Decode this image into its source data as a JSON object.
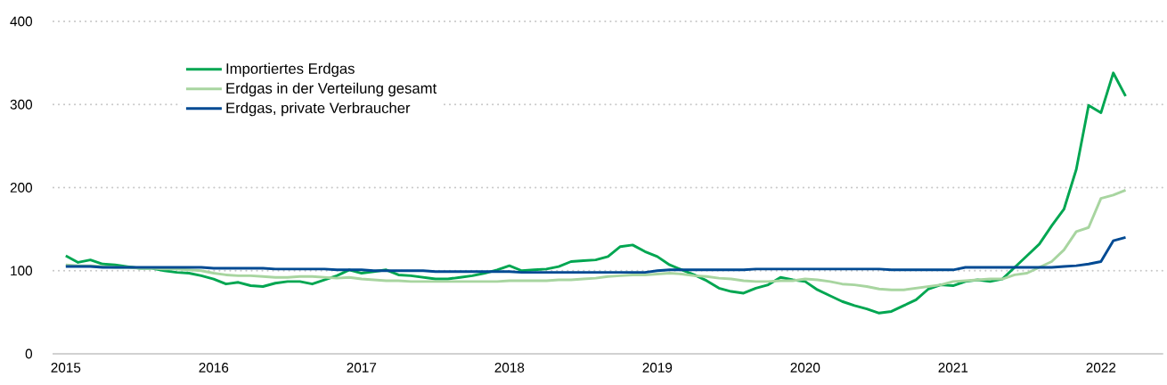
{
  "chart_data": {
    "type": "line",
    "x": [
      "2015-01",
      "2015-02",
      "2015-03",
      "2015-04",
      "2015-05",
      "2015-06",
      "2015-07",
      "2015-08",
      "2015-09",
      "2015-10",
      "2015-11",
      "2015-12",
      "2016-01",
      "2016-02",
      "2016-03",
      "2016-04",
      "2016-05",
      "2016-06",
      "2016-07",
      "2016-08",
      "2016-09",
      "2016-10",
      "2016-11",
      "2016-12",
      "2017-01",
      "2017-02",
      "2017-03",
      "2017-04",
      "2017-05",
      "2017-06",
      "2017-07",
      "2017-08",
      "2017-09",
      "2017-10",
      "2017-11",
      "2017-12",
      "2018-01",
      "2018-02",
      "2018-03",
      "2018-04",
      "2018-05",
      "2018-06",
      "2018-07",
      "2018-08",
      "2018-09",
      "2018-10",
      "2018-11",
      "2018-12",
      "2019-01",
      "2019-02",
      "2019-03",
      "2019-04",
      "2019-05",
      "2019-06",
      "2019-07",
      "2019-08",
      "2019-09",
      "2019-10",
      "2019-11",
      "2019-12",
      "2020-01",
      "2020-02",
      "2020-03",
      "2020-04",
      "2020-05",
      "2020-06",
      "2020-07",
      "2020-08",
      "2020-09",
      "2020-10",
      "2020-11",
      "2020-12",
      "2021-01",
      "2021-02",
      "2021-03",
      "2021-04",
      "2021-05",
      "2021-06",
      "2021-07",
      "2021-08",
      "2021-09",
      "2021-10",
      "2021-11",
      "2021-12",
      "2022-01",
      "2022-02",
      "2022-03"
    ],
    "series": [
      {
        "name": "Importiertes Erdgas",
        "color": "#00a651",
        "values": [
          118,
          110,
          113,
          108,
          107,
          105,
          103,
          103,
          100,
          98,
          97,
          94,
          90,
          84,
          86,
          82,
          81,
          85,
          87,
          87,
          84,
          89,
          94,
          101,
          97,
          99,
          101,
          95,
          94,
          92,
          90,
          90,
          92,
          94,
          97,
          101,
          106,
          100,
          101,
          102,
          105,
          111,
          112,
          113,
          117,
          129,
          131,
          123,
          117,
          107,
          101,
          95,
          88,
          79,
          75,
          73,
          79,
          83,
          92,
          89,
          87,
          77,
          70,
          63,
          58,
          54,
          49,
          51,
          58,
          65,
          78,
          83,
          82,
          87,
          89,
          87,
          90,
          104,
          118,
          132,
          154,
          174,
          222,
          299,
          290,
          338,
          310
        ]
      },
      {
        "name": "Erdgas in der Verteilung gesamt",
        "color": "#a8d5a0",
        "values": [
          107,
          106,
          106,
          105,
          104,
          104,
          103,
          103,
          102,
          102,
          101,
          100,
          97,
          95,
          94,
          94,
          93,
          92,
          92,
          93,
          93,
          92,
          91,
          92,
          90,
          89,
          88,
          88,
          87,
          87,
          87,
          87,
          87,
          87,
          87,
          87,
          88,
          88,
          88,
          88,
          89,
          89,
          90,
          91,
          93,
          94,
          95,
          95,
          96,
          97,
          96,
          94,
          93,
          91,
          90,
          88,
          87,
          87,
          88,
          88,
          90,
          89,
          87,
          84,
          83,
          81,
          78,
          77,
          77,
          79,
          81,
          83,
          87,
          88,
          89,
          90,
          90,
          95,
          97,
          104,
          111,
          125,
          147,
          152,
          187,
          191,
          197
        ]
      },
      {
        "name": "Erdgas, private Verbraucher",
        "color": "#004a93",
        "values": [
          105,
          105,
          105,
          104,
          104,
          104,
          104,
          104,
          104,
          104,
          104,
          104,
          103,
          103,
          103,
          103,
          103,
          102,
          102,
          102,
          102,
          102,
          101,
          101,
          101,
          100,
          100,
          100,
          100,
          100,
          99,
          99,
          99,
          99,
          99,
          99,
          99,
          98,
          98,
          98,
          98,
          98,
          98,
          98,
          98,
          98,
          98,
          98,
          100,
          101,
          101,
          101,
          101,
          101,
          101,
          101,
          102,
          102,
          102,
          102,
          102,
          102,
          102,
          102,
          102,
          102,
          102,
          101,
          101,
          101,
          101,
          101,
          101,
          104,
          104,
          104,
          104,
          104,
          104,
          104,
          104,
          105,
          106,
          108,
          111,
          136,
          140
        ]
      }
    ],
    "xlim": [
      "2014-12",
      "2022-06"
    ],
    "xticks": [
      "2015",
      "2016",
      "2017",
      "2018",
      "2019",
      "2020",
      "2021",
      "2022"
    ],
    "ylim": [
      0,
      400
    ],
    "yticks": [
      0,
      100,
      200,
      300,
      400
    ],
    "grid": "y",
    "legend": "top left",
    "marker": "none",
    "line_style": "solid"
  }
}
